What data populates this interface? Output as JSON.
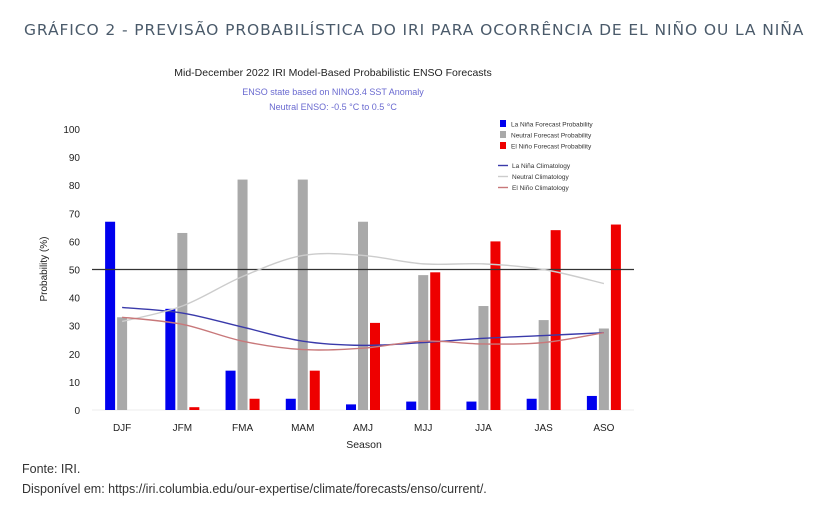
{
  "page": {
    "heading": "GRÁFICO 2 - PREVISÃO PROBABILÍSTICA DO IRI PARA OCORRÊNCIA DE EL NIÑO OU LA NIÑA",
    "source": "Fonte: IRI.",
    "available": "Disponível em: https://iri.columbia.edu/our-expertise/climate/forecasts/enso/current/."
  },
  "chart_data": {
    "type": "bar",
    "title": "Mid-December 2022 IRI Model-Based Probabilistic ENSO Forecasts",
    "subtitle": [
      "ENSO state based on NINO3.4 SST Anomaly",
      "Neutral ENSO: -0.5 °C to 0.5 °C"
    ],
    "xlabel": "Season",
    "ylabel": "Probability (%)",
    "ylim": [
      0,
      100
    ],
    "yticks": [
      "0",
      "10",
      "20",
      "30",
      "40",
      "50",
      "60",
      "70",
      "80",
      "90",
      "100"
    ],
    "reference_line": 50,
    "grid": false,
    "legend_position": "top-right",
    "categories": [
      "DJF",
      "JFM",
      "FMA",
      "MAM",
      "AMJ",
      "MJJ",
      "JJA",
      "JAS",
      "ASO"
    ],
    "series": [
      {
        "name": "La Niña Forecast Probability",
        "color": "#0000ee",
        "values": [
          67,
          36,
          14,
          4,
          2,
          3,
          3,
          4,
          5
        ]
      },
      {
        "name": "Neutral Forecast Probability",
        "color": "#a9a9a9",
        "values": [
          33,
          63,
          82,
          82,
          67,
          48,
          37,
          32,
          29
        ]
      },
      {
        "name": "El Niño Forecast Probability",
        "color": "#ee0000",
        "values": [
          0,
          1,
          4,
          14,
          31,
          49,
          60,
          64,
          66
        ]
      }
    ],
    "climatology": [
      {
        "name": "La Niña Climatology",
        "color": "#3a3aaa",
        "values": [
          36.5,
          34.5,
          29.5,
          24.5,
          23,
          24,
          25.5,
          26.5,
          27.5
        ]
      },
      {
        "name": "Neutral Climatology",
        "color": "#cccccc",
        "values": [
          31.5,
          37,
          47.5,
          55,
          55,
          52,
          52,
          50,
          45
        ]
      },
      {
        "name": "El Niño Climatology",
        "color": "#c8787a",
        "values": [
          33,
          30.5,
          24.5,
          21.5,
          22,
          24.5,
          23.5,
          24,
          27.5
        ]
      }
    ]
  }
}
